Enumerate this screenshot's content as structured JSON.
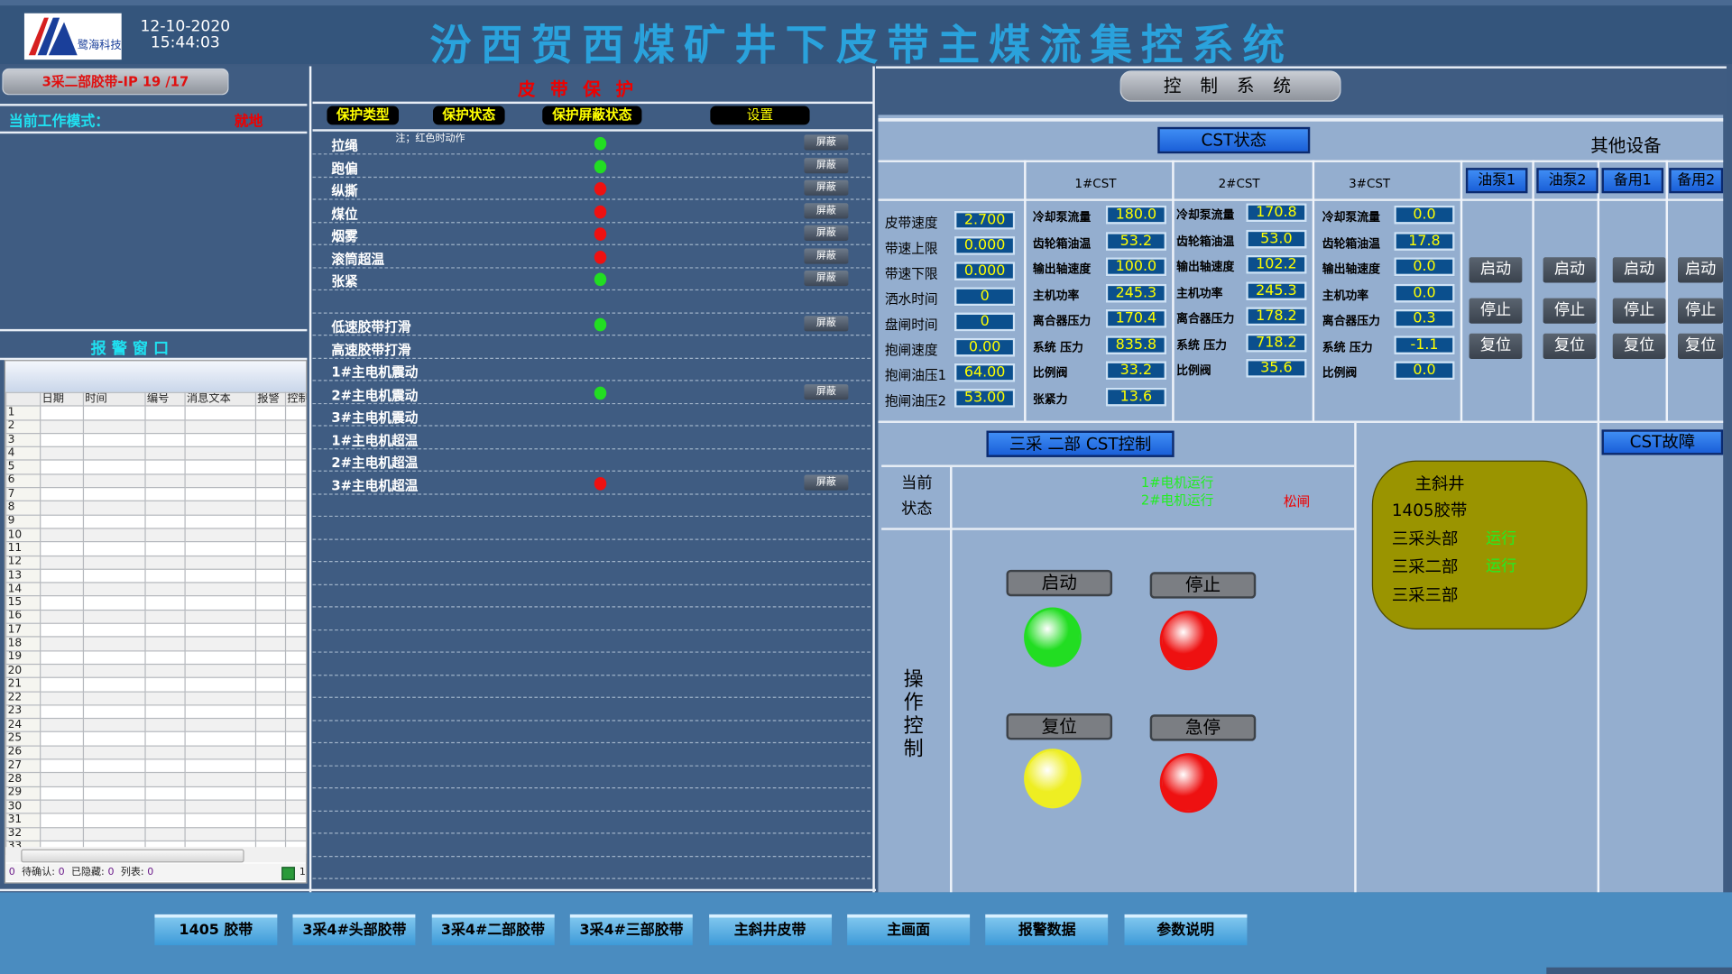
{
  "header": {
    "date": "12-10-2020",
    "time": "15:44:03",
    "title": "汾西贺西煤矿井下皮带主煤流集控系统",
    "logo_text": "鹭海科技"
  },
  "left": {
    "device_button": "3采二部胶带-IP 19 /17",
    "mode_label": "当前工作模式：",
    "mode_value": "就地",
    "alarm_title": "报 警 窗 口",
    "alarm_columns": [
      "",
      "日期",
      "时间",
      "编号",
      "消息文本",
      "报警",
      "控制器",
      "扌"
    ],
    "alarm_row_count": 33,
    "status": [
      {
        "label": "",
        "value": "0"
      },
      {
        "label": "待确认:",
        "value": "0"
      },
      {
        "label": "已隐藏:",
        "value": "0"
      },
      {
        "label": "列表:",
        "value": "0"
      }
    ],
    "status_tail": "1"
  },
  "protection": {
    "title": "皮 带 保 护",
    "headers": [
      "保护类型",
      "保护状态",
      "保护屏蔽状态",
      "设置"
    ],
    "note": "注；红色时动作",
    "shield_label": "屏蔽",
    "rows": [
      {
        "name": "拉绳",
        "status": "green",
        "shield": true
      },
      {
        "name": "跑偏",
        "status": "green",
        "shield": true
      },
      {
        "name": "纵撕",
        "status": "red",
        "shield": true
      },
      {
        "name": "煤位",
        "status": "red",
        "shield": true
      },
      {
        "name": "烟雾",
        "status": "red",
        "shield": true
      },
      {
        "name": "滚筒超温",
        "status": "red",
        "shield": true
      },
      {
        "name": "张紧",
        "status": "green",
        "shield": true
      },
      {
        "name": "",
        "status": "none",
        "shield": false
      },
      {
        "name": "低速胶带打滑",
        "status": "green",
        "shield": true
      },
      {
        "name": "高速胶带打滑",
        "status": "none",
        "shield": false
      },
      {
        "name": "1#主电机震动",
        "status": "none",
        "shield": false
      },
      {
        "name": "2#主电机震动",
        "status": "green",
        "shield": true
      },
      {
        "name": "3#主电机震动",
        "status": "none",
        "shield": false
      },
      {
        "name": "1#主电机超温",
        "status": "none",
        "shield": false
      },
      {
        "name": "2#主电机超温",
        "status": "none",
        "shield": false
      },
      {
        "name": "3#主电机超温",
        "status": "red",
        "shield": true
      }
    ]
  },
  "control": {
    "title": "控 制 系 统",
    "cst_status": "CST状态",
    "other_devices": "其他设备",
    "belt": [
      {
        "label": "皮带速度",
        "value": "2.700"
      },
      {
        "label": "带速上限",
        "value": "0.000"
      },
      {
        "label": "带速下限",
        "value": "0.000"
      },
      {
        "label": "洒水时间",
        "value": "0"
      },
      {
        "label": "盘闸时间",
        "value": "0"
      },
      {
        "label": "抱闸速度",
        "value": "0.00"
      },
      {
        "label": "抱闸油压1",
        "value": "64.00"
      },
      {
        "label": "抱闸油压2",
        "value": "53.00"
      }
    ],
    "cst": [
      {
        "name": "1#CST",
        "items": [
          {
            "label": "冷却泵流量",
            "value": "180.0"
          },
          {
            "label": "齿轮箱油温",
            "value": "53.2"
          },
          {
            "label": "输出轴速度",
            "value": "100.0"
          },
          {
            "label": "主机功率",
            "value": "245.3"
          },
          {
            "label": "离合器压力",
            "value": "170.4"
          },
          {
            "label": "系统  压力",
            "value": "835.8"
          },
          {
            "label": "比例阀",
            "value": "33.2"
          },
          {
            "label": "张紧力",
            "value": "13.6"
          }
        ]
      },
      {
        "name": "2#CST",
        "items": [
          {
            "label": "冷却泵流量",
            "value": "170.8"
          },
          {
            "label": "齿轮箱油温",
            "value": "53.0"
          },
          {
            "label": "输出轴速度",
            "value": "102.2"
          },
          {
            "label": "主机功率",
            "value": "245.3"
          },
          {
            "label": "离合器压力",
            "value": "178.2"
          },
          {
            "label": "系统  压力",
            "value": "718.2"
          },
          {
            "label": "比例阀",
            "value": "35.6"
          }
        ]
      },
      {
        "name": "3#CST",
        "items": [
          {
            "label": "冷却泵流量",
            "value": "0.0"
          },
          {
            "label": "齿轮箱油温",
            "value": "17.8"
          },
          {
            "label": "输出轴速度",
            "value": "0.0"
          },
          {
            "label": "主机功率",
            "value": "0.0"
          },
          {
            "label": "离合器压力",
            "value": "0.3"
          },
          {
            "label": "系统  压力",
            "value": "-1.1"
          },
          {
            "label": "比例阀",
            "value": "0.0"
          }
        ]
      }
    ],
    "devices": [
      {
        "name": "油泵1"
      },
      {
        "name": "油泵2"
      },
      {
        "name": "备用1"
      },
      {
        "name": "备用2"
      }
    ],
    "device_buttons": [
      "启动",
      "停止",
      "复位"
    ],
    "cst_control_title": "三采 二部 CST控制",
    "current_state_label": [
      "当前",
      "状态"
    ],
    "state_motor1": "1#电机运行",
    "state_motor2": "2#电机运行",
    "state_brake": "松闸",
    "op_label": "操作控制",
    "op_buttons": {
      "start": "启动",
      "stop": "停止",
      "reset": "复位",
      "estop": "急停"
    },
    "lamp_colors": {
      "start": "#22dd22",
      "stop": "#ee1111",
      "reset": "#eeee22",
      "estop": "#ee1111"
    },
    "cst_fault": "CST故障",
    "belt_status": {
      "title": "主斜井",
      "items": [
        {
          "name": "1405胶带",
          "state": ""
        },
        {
          "name": "三采头部",
          "state": "运行"
        },
        {
          "name": "三采二部",
          "state": "运行"
        },
        {
          "name": "三采三部",
          "state": ""
        }
      ]
    }
  },
  "nav": [
    "1405 胶带",
    "3采4#头部胶带",
    "3采4#二部胶带",
    "3采4#三部胶带",
    "主斜井皮带",
    "主画面",
    "报警数据",
    "参数说明"
  ],
  "colors": {
    "title": "#2aa2dc",
    "alarm_red": "#ee0000",
    "running_green": "#22ee22",
    "panel_dark": "#3f5c82",
    "panel_light": "#94aecf"
  }
}
